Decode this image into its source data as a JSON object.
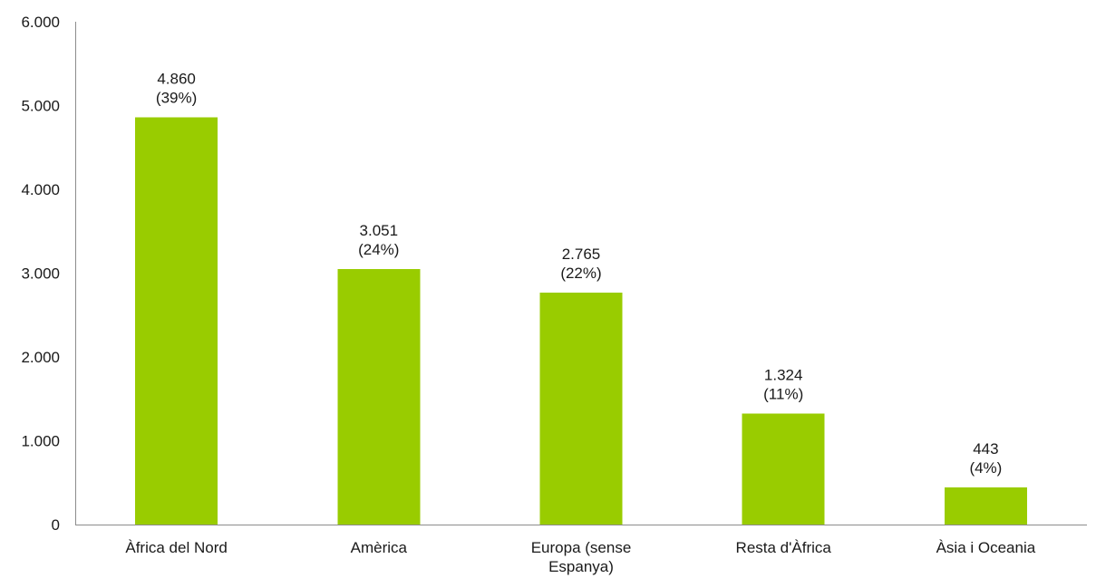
{
  "chart_data": {
    "type": "bar",
    "categories": [
      [
        "Àfrica del Nord"
      ],
      [
        "Amèrica"
      ],
      [
        "Europa (sense",
        "Espanya)"
      ],
      [
        "Resta d'Àfrica"
      ],
      [
        "Àsia i Oceania"
      ]
    ],
    "values": [
      4860,
      3051,
      2765,
      1324,
      443
    ],
    "data_labels": [
      [
        "4.860",
        "(39%)"
      ],
      [
        "3.051",
        "(24%)"
      ],
      [
        "2.765",
        "(22%)"
      ],
      [
        "1.324",
        "(11%)"
      ],
      [
        "443",
        "(4%)"
      ]
    ],
    "y_ticks": [
      0,
      1000,
      2000,
      3000,
      4000,
      5000,
      6000
    ],
    "y_tick_labels": [
      "0",
      "1.000",
      "2.000",
      "3.000",
      "4.000",
      "5.000",
      "6.000"
    ],
    "ylim": [
      0,
      6000
    ],
    "grid": false,
    "legend": "none",
    "bar_color": "#99cc00",
    "title": "",
    "xlabel": "",
    "ylabel": ""
  }
}
